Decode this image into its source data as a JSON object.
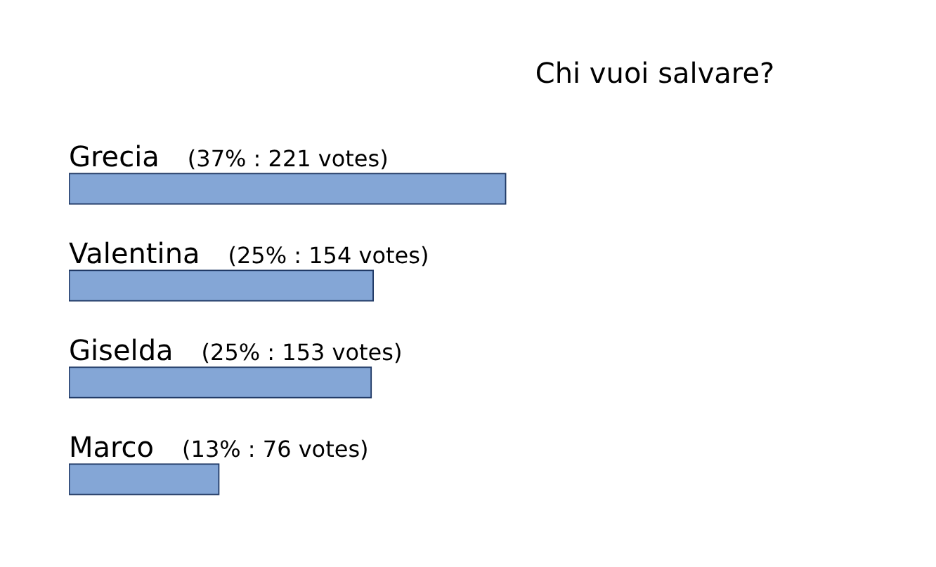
{
  "chart_data": {
    "type": "bar",
    "orientation": "horizontal",
    "title": "Chi vuoi salvare?",
    "categories": [
      "Grecia",
      "Valentina",
      "Giselda",
      "Marco"
    ],
    "values": [
      221,
      154,
      153,
      76
    ],
    "value_labels": [
      "(37% : 221 votes)",
      "(25% : 154 votes)",
      "(25% : 153 votes)",
      "(13% : 76 votes)"
    ],
    "color": "#84a6d6",
    "legend": false
  }
}
